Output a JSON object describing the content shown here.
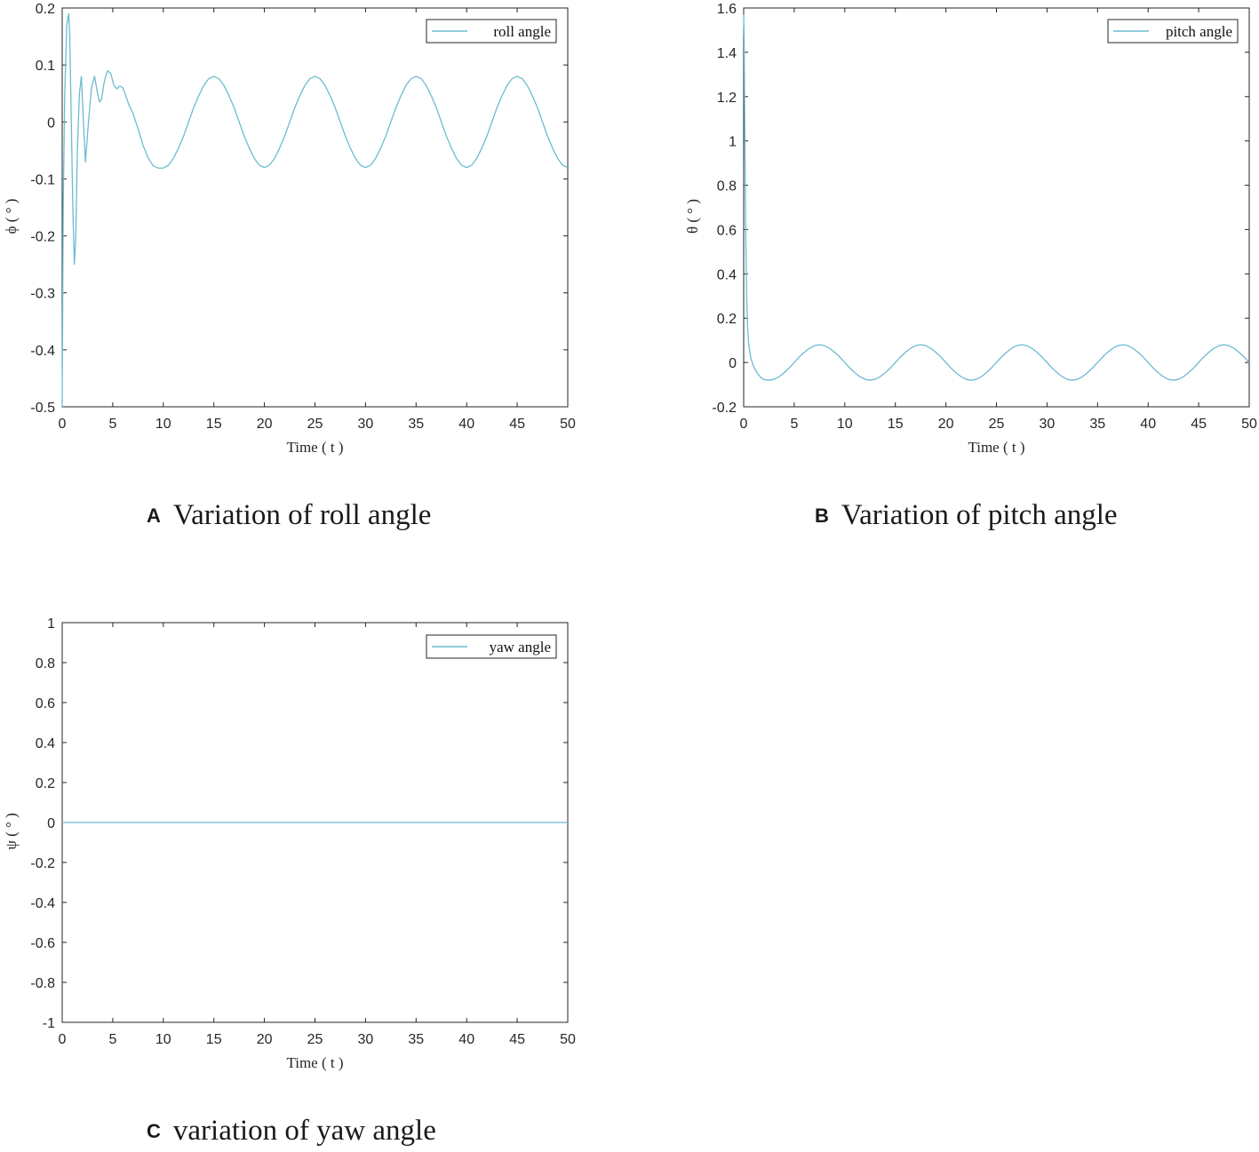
{
  "line_color": "#6bbcd0",
  "chart_data": [
    {
      "type": "line",
      "panel_letter": "A",
      "caption": "Variation of roll angle",
      "xlabel": "Time ( t )",
      "ylabel": "ϕ ( ° )",
      "xlim": [
        0,
        50
      ],
      "ylim": [
        -0.5,
        0.2
      ],
      "xticks": [
        0,
        5,
        10,
        15,
        20,
        25,
        30,
        35,
        40,
        45,
        50
      ],
      "yticks": [
        -0.5,
        -0.4,
        -0.3,
        -0.2,
        -0.1,
        0,
        0.1,
        0.2
      ],
      "grid": false,
      "legend_position": "top-right",
      "series": [
        {
          "name": "roll angle",
          "x": [
            0,
            0.1,
            0.25,
            0.45,
            0.65,
            0.75,
            0.9,
            1.05,
            1.2,
            1.35,
            1.5,
            1.7,
            1.9,
            2.1,
            2.3,
            2.6,
            2.9,
            3.2,
            3.5,
            3.7,
            3.9,
            4.1,
            4.3,
            4.5,
            4.8,
            5.1,
            5.4,
            5.7,
            6.0,
            6.3,
            6.6,
            7.0,
            7.5,
            8.0,
            8.5,
            9.0,
            9.5,
            10.0,
            10.5,
            11.0,
            11.5,
            12.0,
            12.5,
            13.0,
            13.5,
            14.0,
            14.5,
            15.0,
            15.5,
            16.0,
            16.5,
            17.0,
            17.5,
            18.0,
            18.5,
            19.0,
            19.5,
            20.0,
            20.5,
            21.0,
            21.5,
            22.0,
            22.5,
            23.0,
            23.5,
            24.0,
            24.5,
            25.0,
            25.5,
            26.0,
            26.5,
            27.0,
            27.5,
            28.0,
            28.5,
            29.0,
            29.5,
            30.0,
            30.5,
            31.0,
            31.5,
            32.0,
            32.5,
            33.0,
            33.5,
            34.0,
            34.5,
            35.0,
            35.5,
            36.0,
            36.5,
            37.0,
            37.5,
            38.0,
            38.5,
            39.0,
            39.5,
            40.0,
            40.5,
            41.0,
            41.5,
            42.0,
            42.5,
            43.0,
            43.5,
            44.0,
            44.5,
            45.0,
            45.5,
            46.0,
            46.5,
            47.0,
            47.5,
            48.0,
            48.5,
            49.0,
            49.5,
            50.0
          ],
          "y": [
            -0.5,
            -0.15,
            0.05,
            0.17,
            0.19,
            0.15,
            0.0,
            -0.15,
            -0.25,
            -0.2,
            -0.05,
            0.05,
            0.08,
            0.0,
            -0.07,
            0.0,
            0.06,
            0.08,
            0.05,
            0.035,
            0.04,
            0.065,
            0.08,
            0.09,
            0.085,
            0.065,
            0.058,
            0.063,
            0.06,
            0.045,
            0.03,
            0.015,
            -0.012,
            -0.041,
            -0.063,
            -0.077,
            -0.081,
            -0.081,
            -0.076,
            -0.064,
            -0.046,
            -0.025,
            0.0,
            0.025,
            0.046,
            0.064,
            0.076,
            0.08,
            0.076,
            0.064,
            0.046,
            0.025,
            0.0,
            -0.025,
            -0.046,
            -0.064,
            -0.076,
            -0.08,
            -0.076,
            -0.064,
            -0.046,
            -0.025,
            0.0,
            0.025,
            0.046,
            0.064,
            0.076,
            0.08,
            0.076,
            0.064,
            0.046,
            0.025,
            0.0,
            -0.025,
            -0.046,
            -0.064,
            -0.076,
            -0.08,
            -0.076,
            -0.064,
            -0.046,
            -0.025,
            0.0,
            0.025,
            0.046,
            0.064,
            0.076,
            0.08,
            0.076,
            0.064,
            0.046,
            0.025,
            0.0,
            -0.025,
            -0.046,
            -0.064,
            -0.076,
            -0.08,
            -0.076,
            -0.064,
            -0.046,
            -0.025,
            0.0,
            0.025,
            0.046,
            0.064,
            0.076,
            0.08,
            0.076,
            0.064,
            0.046,
            0.025,
            0.0,
            -0.025,
            -0.046,
            -0.064,
            -0.076,
            -0.08
          ]
        }
      ]
    },
    {
      "type": "line",
      "panel_letter": "B",
      "caption": "Variation of pitch angle",
      "xlabel": "Time ( t )",
      "ylabel": "θ ( ° )",
      "xlim": [
        0,
        50
      ],
      "ylim": [
        -0.2,
        1.6
      ],
      "xticks": [
        0,
        5,
        10,
        15,
        20,
        25,
        30,
        35,
        40,
        45,
        50
      ],
      "yticks": [
        -0.2,
        0,
        0.2,
        0.4,
        0.6,
        0.8,
        1,
        1.2,
        1.4,
        1.6
      ],
      "grid": false,
      "legend_position": "top-right",
      "series": [
        {
          "name": "pitch angle",
          "x": [
            0,
            0.05,
            0.1,
            0.2,
            0.3,
            0.4,
            0.5,
            0.7,
            1.0,
            1.3,
            1.7,
            2.0,
            2.5,
            3.0,
            3.5,
            4.0,
            4.5,
            5.0,
            5.5,
            6.0,
            6.5,
            7.0,
            7.5,
            8.0,
            8.5,
            9.0,
            9.5,
            10.0,
            10.5,
            11.0,
            11.5,
            12.0,
            12.5,
            13.0,
            13.5,
            14.0,
            14.5,
            15.0,
            15.5,
            16.0,
            16.5,
            17.0,
            17.5,
            18.0,
            18.5,
            19.0,
            19.5,
            20.0,
            20.5,
            21.0,
            21.5,
            22.0,
            22.5,
            23.0,
            23.5,
            24.0,
            24.5,
            25.0,
            25.5,
            26.0,
            26.5,
            27.0,
            27.5,
            28.0,
            28.5,
            29.0,
            29.5,
            30.0,
            30.5,
            31.0,
            31.5,
            32.0,
            32.5,
            33.0,
            33.5,
            34.0,
            34.5,
            35.0,
            35.5,
            36.0,
            36.5,
            37.0,
            37.5,
            38.0,
            38.5,
            39.0,
            39.5,
            40.0,
            40.5,
            41.0,
            41.5,
            42.0,
            42.5,
            43.0,
            43.5,
            44.0,
            44.5,
            45.0,
            45.5,
            46.0,
            46.5,
            47.0,
            47.5,
            48.0,
            48.5,
            49.0,
            49.5,
            50.0
          ],
          "y": [
            1.57,
            1.45,
            1.1,
            0.6,
            0.3,
            0.15,
            0.08,
            0.02,
            -0.02,
            -0.045,
            -0.068,
            -0.077,
            -0.08,
            -0.076,
            -0.064,
            -0.046,
            -0.025,
            0.0,
            0.025,
            0.046,
            0.064,
            0.076,
            0.08,
            0.076,
            0.064,
            0.046,
            0.025,
            0.0,
            -0.025,
            -0.046,
            -0.064,
            -0.076,
            -0.08,
            -0.076,
            -0.064,
            -0.046,
            -0.025,
            0.0,
            0.025,
            0.046,
            0.064,
            0.076,
            0.08,
            0.076,
            0.064,
            0.046,
            0.025,
            0.0,
            -0.025,
            -0.046,
            -0.064,
            -0.076,
            -0.08,
            -0.076,
            -0.064,
            -0.046,
            -0.025,
            0.0,
            0.025,
            0.046,
            0.064,
            0.076,
            0.08,
            0.076,
            0.064,
            0.046,
            0.025,
            0.0,
            -0.025,
            -0.046,
            -0.064,
            -0.076,
            -0.08,
            -0.076,
            -0.064,
            -0.046,
            -0.025,
            0.0,
            0.025,
            0.046,
            0.064,
            0.076,
            0.08,
            0.076,
            0.064,
            0.046,
            0.025,
            0.0,
            -0.025,
            -0.046,
            -0.064,
            -0.076,
            -0.08,
            -0.076,
            -0.064,
            -0.046,
            -0.025,
            0.0,
            0.025,
            0.046,
            0.064,
            0.076,
            0.08,
            0.076,
            0.064,
            0.046,
            0.025,
            0.0
          ]
        }
      ]
    },
    {
      "type": "line",
      "panel_letter": "C",
      "caption": "variation of yaw angle",
      "xlabel": "Time ( t )",
      "ylabel": "ψ ( ° )",
      "xlim": [
        0,
        50
      ],
      "ylim": [
        -1,
        1
      ],
      "xticks": [
        0,
        5,
        10,
        15,
        20,
        25,
        30,
        35,
        40,
        45,
        50
      ],
      "yticks": [
        -1,
        -0.8,
        -0.6,
        -0.4,
        -0.2,
        0,
        0.2,
        0.4,
        0.6,
        0.8,
        1
      ],
      "grid": false,
      "legend_position": "top-right",
      "series": [
        {
          "name": "yaw angle",
          "x": [
            0,
            50
          ],
          "y": [
            0,
            0
          ]
        }
      ]
    }
  ]
}
